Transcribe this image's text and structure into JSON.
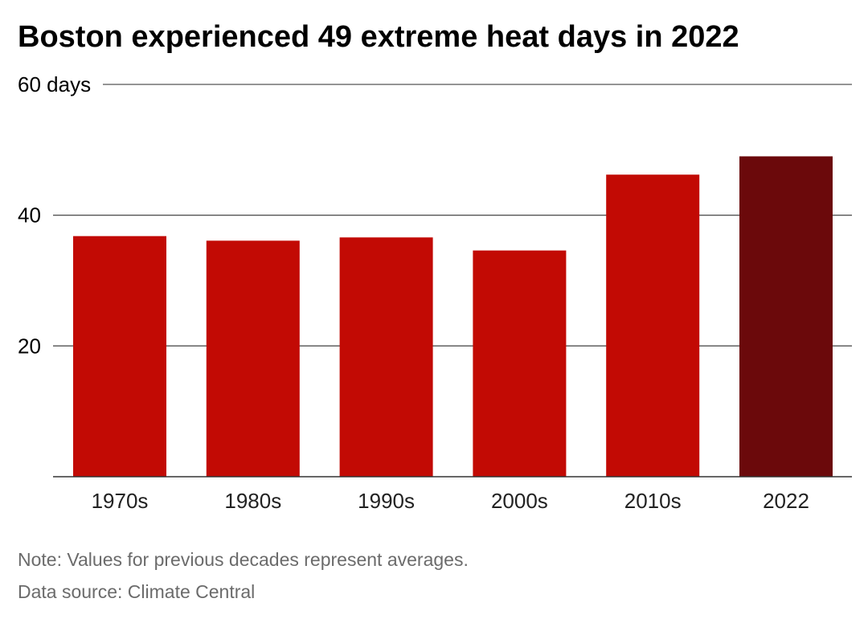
{
  "title": "Boston experienced 49 extreme heat days in 2022",
  "note": "Note: Values for previous decades represent averages.",
  "source": "Data source: Climate Central",
  "colors": {
    "bar": "#c20a04",
    "highlight": "#6b090b",
    "grid": "#555555",
    "text": "#000000",
    "muted": "#6b6b6b"
  },
  "chart_data": {
    "type": "bar",
    "categories": [
      "1970s",
      "1980s",
      "1990s",
      "2000s",
      "2010s",
      "2022"
    ],
    "values": [
      36.8,
      36.1,
      36.6,
      34.6,
      46.2,
      49
    ],
    "highlight_category": "2022",
    "ylim": [
      0,
      60
    ],
    "yticks": [
      20,
      40,
      60
    ],
    "ytick_labels": [
      "20",
      "40",
      "60 days"
    ],
    "xlabel": "",
    "ylabel": "",
    "grid": true,
    "legend": "none"
  }
}
